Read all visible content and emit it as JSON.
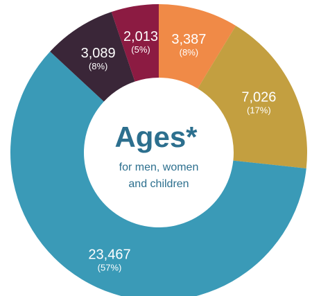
{
  "chart_data": {
    "type": "pie",
    "donut": true,
    "title": "Ages*",
    "subtitle_lines": [
      "for men, women",
      "and children"
    ],
    "slices": [
      {
        "value": 3387,
        "label": "3,387",
        "percent_label": "(8%)",
        "color": "#f08a47"
      },
      {
        "value": 7026,
        "label": "7,026",
        "percent_label": "(17%)",
        "color": "#c39f40"
      },
      {
        "value": 23467,
        "label": "23,467",
        "percent_label": "(57%)",
        "color": "#3a9ab7"
      },
      {
        "value": 3089,
        "label": "3,089",
        "percent_label": "(8%)",
        "color": "#3a2638"
      },
      {
        "value": 2013,
        "label": "2,013",
        "percent_label": "(5%)",
        "color": "#8c1b42"
      }
    ]
  }
}
